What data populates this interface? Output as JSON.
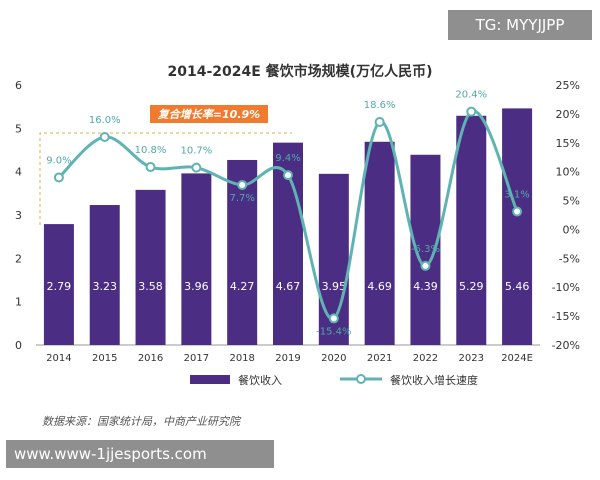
{
  "chart_data": {
    "type": "bar+line",
    "title": "2014-2024E 餐饮市场规模(万亿人民币)",
    "categories": [
      "2014",
      "2015",
      "2016",
      "2017",
      "2018",
      "2019",
      "2020",
      "2021",
      "2022",
      "2023",
      "2024E"
    ],
    "series": [
      {
        "name": "餐饮收入",
        "type": "bar",
        "axis": "left",
        "values": [
          2.79,
          3.23,
          3.58,
          3.96,
          4.27,
          4.67,
          3.95,
          4.69,
          4.39,
          5.29,
          5.46
        ]
      },
      {
        "name": "餐饮收入增长速度",
        "type": "line",
        "axis": "right",
        "values": [
          9.0,
          16.0,
          10.8,
          10.7,
          7.7,
          9.4,
          -15.4,
          18.6,
          -6.3,
          20.4,
          3.1
        ],
        "labels": [
          "9.0%",
          "16.0%",
          "10.8%",
          "10.7%",
          "7.7%",
          "9.4%",
          "-15.4%",
          "18.6%",
          "-6.3%",
          "20.4%",
          "3.1%"
        ]
      }
    ],
    "bar_labels": [
      "2.79",
      "3.23",
      "3.58",
      "3.96",
      "4.27",
      "4.67",
      "3.95",
      "4.69",
      "4.39",
      "5.29",
      "5.46"
    ],
    "left_axis": {
      "ylim": [
        0,
        6
      ],
      "ticks": [
        "0",
        "1",
        "2",
        "3",
        "4",
        "5",
        "6"
      ]
    },
    "right_axis": {
      "ylim": [
        -20,
        25
      ],
      "ticks": [
        "-20%",
        "-15%",
        "-10%",
        "-5%",
        "0%",
        "5%",
        "10%",
        "15%",
        "20%",
        "25%"
      ]
    },
    "annotation": "复合增长率=10.9%",
    "colors": {
      "bar": "#4b2d83",
      "line": "#5fb3b3",
      "annotation_bg": "#f07a2e",
      "growth_label": "#4fa9a9"
    }
  },
  "legend": {
    "bar": "餐饮收入",
    "line": "餐饮收入增长速度"
  },
  "source": "数据来源：国家统计局，中商产业研究院",
  "watermark_top": "TG: MYYJJPP",
  "watermark_bottom": "www.www-1jjesports.com"
}
